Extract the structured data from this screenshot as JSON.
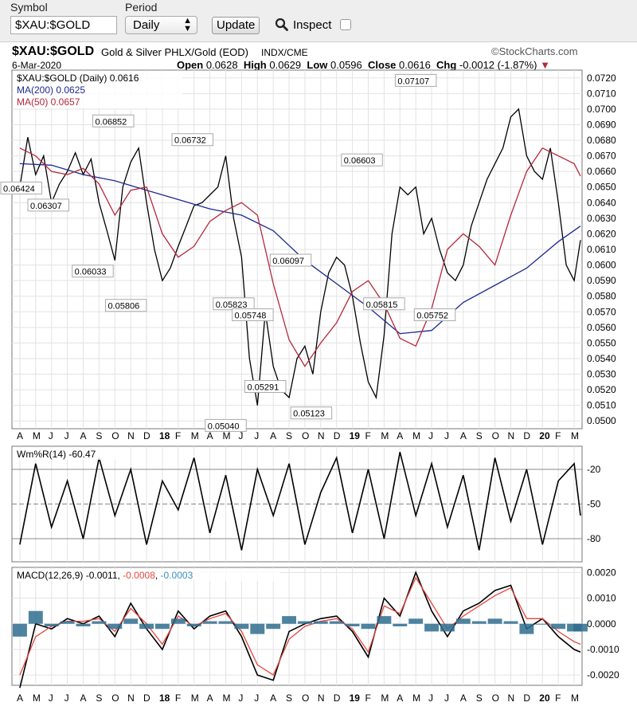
{
  "toolbar": {
    "symbol_label": "Symbol",
    "symbol_value": "$XAU:$GOLD",
    "period_label": "Period",
    "period_value": "Daily",
    "update_label": "Update",
    "inspect_label": "Inspect",
    "inspect_checked": false
  },
  "header": {
    "symbol": "$XAU:$GOLD",
    "description": "Gold & Silver PHLX/Gold (EOD)",
    "exchange": "INDX/CME",
    "brand": "StockCharts.com",
    "date": "6-Mar-2020",
    "open_label": "Open",
    "open": "0.0628",
    "high_label": "High",
    "high": "0.0629",
    "low_label": "Low",
    "low": "0.0596",
    "close_label": "Close",
    "close": "0.0616",
    "chg_label": "Chg",
    "chg": "-0.0012 (-1.87%)"
  },
  "chart_data": [
    {
      "type": "line",
      "panel": "price",
      "legend": [
        "$XAU:$GOLD (Daily) 0.0616",
        "MA(200) 0.0625",
        "MA(50) 0.0657"
      ],
      "x_labels": [
        "A",
        "M",
        "J",
        "J",
        "A",
        "S",
        "O",
        "N",
        "D",
        "18",
        "F",
        "M",
        "A",
        "M",
        "J",
        "J",
        "A",
        "S",
        "O",
        "N",
        "D",
        "19",
        "F",
        "M",
        "A",
        "M",
        "J",
        "J",
        "A",
        "S",
        "O",
        "N",
        "D",
        "20",
        "F",
        "M"
      ],
      "ylim": [
        0.0495,
        0.0725
      ],
      "y_ticks": [
        "0.0720",
        "0.0710",
        "0.0700",
        "0.0690",
        "0.0680",
        "0.0670",
        "0.0660",
        "0.0650",
        "0.0640",
        "0.0630",
        "0.0620",
        "0.0610",
        "0.0600",
        "0.0590",
        "0.0580",
        "0.0570",
        "0.0560",
        "0.0550",
        "0.0540",
        "0.0530",
        "0.0520",
        "0.0510",
        "0.0500"
      ],
      "series": [
        {
          "name": "$XAU:$GOLD",
          "color": "#000000",
          "x": [
            0,
            0.5,
            1,
            1.5,
            2,
            2.5,
            3,
            3.5,
            4,
            4.5,
            5,
            5.5,
            6,
            6.5,
            7,
            7.5,
            8,
            8.5,
            9,
            9.5,
            10,
            10.5,
            11,
            11.5,
            12,
            12.5,
            13,
            13.5,
            14,
            14.5,
            15,
            15.5,
            16,
            16.5,
            17,
            17.5,
            18,
            18.5,
            19,
            19.5,
            20,
            20.5,
            21,
            21.5,
            22,
            22.5,
            23,
            23.5,
            24,
            24.5,
            25,
            25.5,
            26,
            26.5,
            27,
            27.5,
            28,
            28.5,
            29,
            29.5,
            30,
            30.5,
            31,
            31.5,
            32,
            32.5,
            33,
            33.5,
            34,
            34.5,
            35,
            35.4
          ],
          "y": [
            0.065,
            0.0682,
            0.0658,
            0.067,
            0.064,
            0.0652,
            0.066,
            0.0672,
            0.0658,
            0.0668,
            0.064,
            0.0622,
            0.0603,
            0.065,
            0.0666,
            0.0675,
            0.064,
            0.061,
            0.059,
            0.0598,
            0.0612,
            0.0625,
            0.0638,
            0.064,
            0.0645,
            0.065,
            0.067,
            0.063,
            0.0605,
            0.054,
            0.051,
            0.057,
            0.0535,
            0.052,
            0.0515,
            0.054,
            0.0548,
            0.053,
            0.057,
            0.0595,
            0.0605,
            0.06,
            0.058,
            0.055,
            0.0525,
            0.0515,
            0.0555,
            0.062,
            0.065,
            0.0645,
            0.065,
            0.062,
            0.063,
            0.061,
            0.0595,
            0.059,
            0.06,
            0.0625,
            0.064,
            0.0655,
            0.0665,
            0.0675,
            0.0695,
            0.07,
            0.067,
            0.066,
            0.0655,
            0.0675,
            0.064,
            0.06,
            0.059,
            0.0616
          ]
        },
        {
          "name": "MA(200)",
          "color": "#1c2a8e",
          "x": [
            0,
            2,
            4,
            6,
            8,
            10,
            12,
            14,
            16,
            18,
            20,
            22,
            24,
            26,
            28,
            30,
            32,
            34,
            35.4
          ],
          "y": [
            0.0665,
            0.0664,
            0.0658,
            0.0654,
            0.0648,
            0.0642,
            0.0636,
            0.0632,
            0.0622,
            0.0603,
            0.0588,
            0.0573,
            0.0556,
            0.0558,
            0.0576,
            0.0587,
            0.0598,
            0.0615,
            0.0625
          ]
        },
        {
          "name": "MA(50)",
          "color": "#b5283b",
          "x": [
            0,
            1,
            2,
            3,
            4,
            5,
            6,
            7,
            8,
            9,
            10,
            11,
            12,
            13,
            14,
            15,
            16,
            17,
            18,
            19,
            20,
            21,
            22,
            23,
            24,
            25,
            26,
            27,
            28,
            29,
            30,
            31,
            32,
            33,
            34,
            35,
            35.4
          ],
          "y": [
            0.0675,
            0.067,
            0.066,
            0.0658,
            0.0662,
            0.0652,
            0.0632,
            0.0648,
            0.065,
            0.062,
            0.0605,
            0.0612,
            0.0628,
            0.0635,
            0.064,
            0.0632,
            0.0588,
            0.0552,
            0.0535,
            0.055,
            0.0563,
            0.0583,
            0.059,
            0.0575,
            0.0553,
            0.0548,
            0.0572,
            0.061,
            0.062,
            0.0612,
            0.06,
            0.0632,
            0.066,
            0.0675,
            0.067,
            0.0665,
            0.0657
          ]
        }
      ],
      "annotations": [
        {
          "x": 0,
          "y": 0.0642,
          "label": "0.06424"
        },
        {
          "x": 1.8,
          "y": 0.0631,
          "label": "0.06307"
        },
        {
          "x": 4.6,
          "y": 0.0603,
          "label": "0.06033"
        },
        {
          "x": 5.9,
          "y": 0.0685,
          "label": "0.06852"
        },
        {
          "x": 6.7,
          "y": 0.0581,
          "label": "0.05806"
        },
        {
          "x": 10.9,
          "y": 0.0673,
          "label": "0.06732"
        },
        {
          "x": 13.5,
          "y": 0.0582,
          "label": "0.05823"
        },
        {
          "x": 13.0,
          "y": 0.0504,
          "label": "0.05040"
        },
        {
          "x": 14.7,
          "y": 0.0575,
          "label": "0.05748"
        },
        {
          "x": 15.5,
          "y": 0.0529,
          "label": "0.05291"
        },
        {
          "x": 17.1,
          "y": 0.061,
          "label": "0.06097"
        },
        {
          "x": 18.4,
          "y": 0.0512,
          "label": "0.05123"
        },
        {
          "x": 21.6,
          "y": 0.066,
          "label": "0.06603"
        },
        {
          "x": 23.0,
          "y": 0.0582,
          "label": "0.05815"
        },
        {
          "x": 25.0,
          "y": 0.0711,
          "label": "0.07107"
        },
        {
          "x": 26.2,
          "y": 0.0575,
          "label": "0.05752"
        }
      ]
    },
    {
      "type": "line",
      "panel": "williams",
      "legend": "Wm%R(14) -60.47",
      "ylim": [
        -100,
        0
      ],
      "y_ticks": [
        "-20",
        "-50",
        "-80"
      ],
      "series": [
        {
          "name": "Wm%R(14)",
          "color": "#000000",
          "x": [
            0,
            1,
            2,
            3,
            4,
            5,
            6,
            7,
            8,
            9,
            10,
            11,
            12,
            13,
            14,
            15,
            16,
            17,
            18,
            19,
            20,
            21,
            22,
            23,
            24,
            25,
            26,
            27,
            28,
            29,
            30,
            31,
            32,
            33,
            34,
            35,
            35.4
          ],
          "y": [
            -85,
            -15,
            -70,
            -30,
            -80,
            -10,
            -60,
            -20,
            -85,
            -30,
            -55,
            -10,
            -75,
            -25,
            -90,
            -20,
            -60,
            -15,
            -85,
            -40,
            -10,
            -75,
            -20,
            -80,
            -5,
            -60,
            -15,
            -70,
            -25,
            -90,
            -10,
            -65,
            -20,
            -85,
            -30,
            -15,
            -60
          ]
        }
      ]
    },
    {
      "type": "line",
      "panel": "macd",
      "legend": [
        "MACD(12,26,9) -0.0011",
        "-0.0008",
        "-0.0003"
      ],
      "ylim": [
        -0.0024,
        0.0022
      ],
      "y_ticks": [
        "0.0020",
        "0.0010",
        "0.0000",
        "-0.0010",
        "-0.0020"
      ],
      "series": [
        {
          "name": "MACD",
          "color": "#000000",
          "x": [
            0,
            1,
            2,
            3,
            4,
            5,
            6,
            7,
            8,
            9,
            10,
            11,
            12,
            13,
            14,
            15,
            16,
            17,
            18,
            19,
            20,
            21,
            22,
            23,
            24,
            25,
            26,
            27,
            28,
            29,
            30,
            31,
            32,
            33,
            34,
            35,
            35.4
          ],
          "y": [
            -0.0025,
            0.0,
            -0.0002,
            0.0002,
            0.0,
            0.0003,
            -0.0005,
            0.0008,
            -0.0002,
            -0.001,
            0.0005,
            -0.0002,
            0.0003,
            0.0005,
            -0.0005,
            -0.002,
            -0.0022,
            -0.0003,
            0.0,
            0.0002,
            0.0003,
            -0.0003,
            -0.0013,
            0.001,
            0.0003,
            0.002,
            0.0005,
            -0.0005,
            0.0005,
            0.0008,
            0.0013,
            0.0015,
            -0.0002,
            0.0002,
            -0.0005,
            -0.001,
            -0.0011
          ]
        },
        {
          "name": "Signal",
          "color": "#e5463f",
          "x": [
            0,
            1,
            2,
            3,
            4,
            5,
            6,
            7,
            8,
            9,
            10,
            11,
            12,
            13,
            14,
            15,
            16,
            17,
            18,
            19,
            20,
            21,
            22,
            23,
            24,
            25,
            26,
            27,
            28,
            29,
            30,
            31,
            32,
            33,
            34,
            35,
            35.4
          ],
          "y": [
            -0.002,
            -0.0005,
            -0.0001,
            0.0001,
            0.0001,
            0.0002,
            -0.0003,
            0.0006,
            0.0,
            -0.0008,
            0.0003,
            -0.0001,
            0.0002,
            0.0004,
            -0.0003,
            -0.0016,
            -0.002,
            -0.0006,
            -0.0001,
            0.0001,
            0.0002,
            -0.0002,
            -0.0011,
            0.0007,
            0.0004,
            0.0018,
            0.0008,
            -0.0002,
            0.0003,
            0.0007,
            0.0011,
            0.0014,
            0.0002,
            0.0002,
            -0.0003,
            -0.0007,
            -0.0008
          ]
        },
        {
          "name": "Histogram",
          "color": "#2f6d8f",
          "x": [
            0,
            1,
            2,
            3,
            4,
            5,
            6,
            7,
            8,
            9,
            10,
            11,
            12,
            13,
            14,
            15,
            16,
            17,
            18,
            19,
            20,
            21,
            22,
            23,
            24,
            25,
            26,
            27,
            28,
            29,
            30,
            31,
            32,
            33,
            34,
            35,
            35.4
          ],
          "y": [
            -0.0005,
            0.0005,
            -0.0001,
            0.0001,
            -0.0001,
            0.0001,
            -0.0002,
            0.0002,
            -0.0002,
            -0.0002,
            0.0002,
            -0.0001,
            0.0001,
            0.0001,
            -0.0002,
            -0.0004,
            -0.0002,
            0.0003,
            0.0001,
            0.0001,
            0.0001,
            -0.0001,
            -0.0002,
            0.0003,
            -0.0001,
            0.0002,
            -0.0003,
            -0.0003,
            0.0002,
            0.0001,
            0.0002,
            0.0001,
            -0.0004,
            0.0,
            -0.0002,
            -0.0003,
            -0.0003
          ]
        }
      ]
    }
  ]
}
